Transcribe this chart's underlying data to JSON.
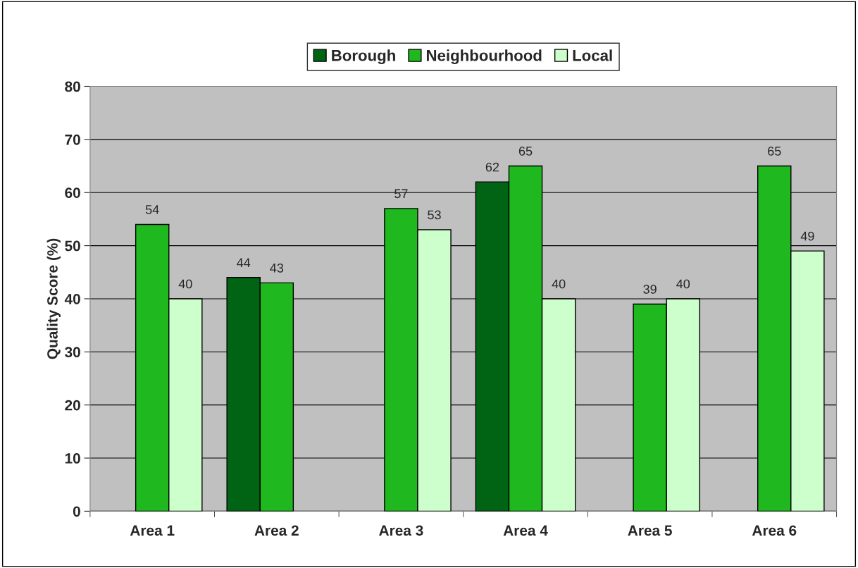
{
  "chart_data": {
    "type": "bar",
    "ylabel": "Quality Score (%)",
    "categories": [
      "Area 1",
      "Area 2",
      "Area 3",
      "Area 4",
      "Area 5",
      "Area 6"
    ],
    "series": [
      {
        "name": "Borough",
        "color": "#006414",
        "values": [
          null,
          44,
          null,
          62,
          null,
          null
        ]
      },
      {
        "name": "Neighbourhood",
        "color": "#1fb81f",
        "values": [
          54,
          43,
          57,
          65,
          39,
          65
        ]
      },
      {
        "name": "Local",
        "color": "#ccffcc",
        "values": [
          40,
          null,
          53,
          40,
          40,
          49
        ]
      }
    ],
    "ylim": [
      0,
      80
    ],
    "yticks": [
      0,
      10,
      20,
      30,
      40,
      50,
      60,
      70,
      80
    ],
    "grid": "y",
    "legend": "top",
    "data_labels": true
  }
}
